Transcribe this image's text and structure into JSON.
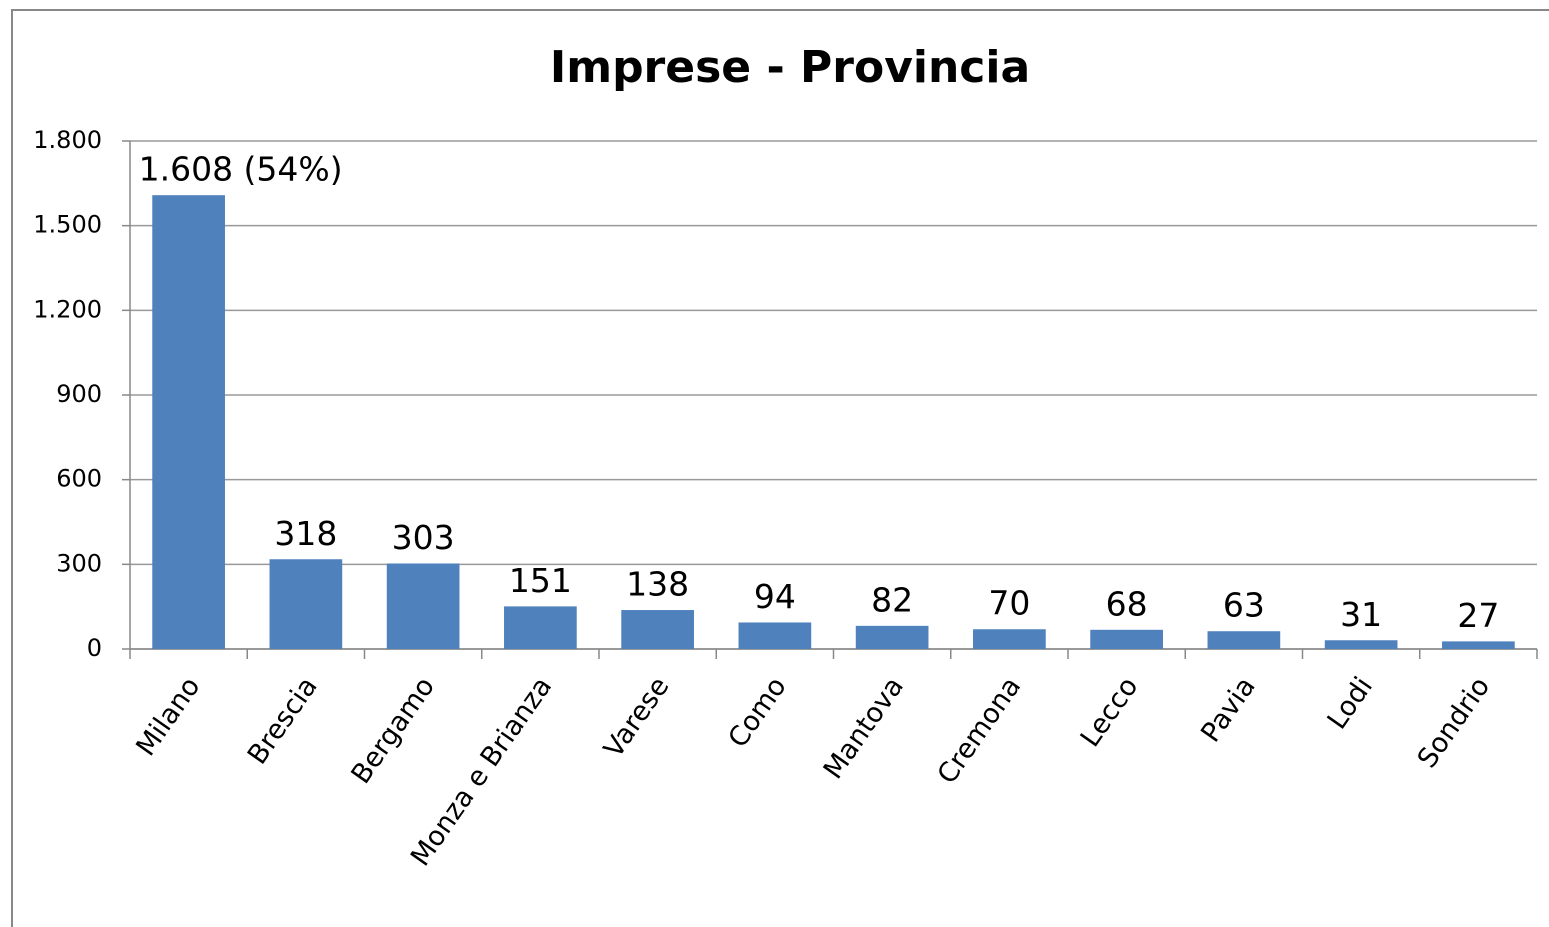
{
  "chart_data": {
    "type": "bar",
    "title": "Imprese - Provincia",
    "categories": [
      "Milano",
      "Brescia",
      "Bergamo",
      "Monza e Brianza",
      "Varese",
      "Como",
      "Mantova",
      "Cremona",
      "Lecco",
      "Pavia",
      "Lodi",
      "Sondrio"
    ],
    "values": [
      1608,
      318,
      303,
      151,
      138,
      94,
      82,
      70,
      68,
      63,
      31,
      27
    ],
    "value_labels": [
      "1.608 (54%)",
      "318",
      "303",
      "151",
      "138",
      "94",
      "82",
      "70",
      "68",
      "63",
      "31",
      "27"
    ],
    "color": "#4f81bd",
    "ylim": [
      0,
      1800
    ],
    "yticks": [
      0,
      300,
      600,
      900,
      {
        "value": 1200,
        "label": "1.200"
      },
      {
        "value": 1500,
        "label": "1.500"
      },
      {
        "value": 1800,
        "label": "1.800"
      }
    ],
    "grid": true
  }
}
